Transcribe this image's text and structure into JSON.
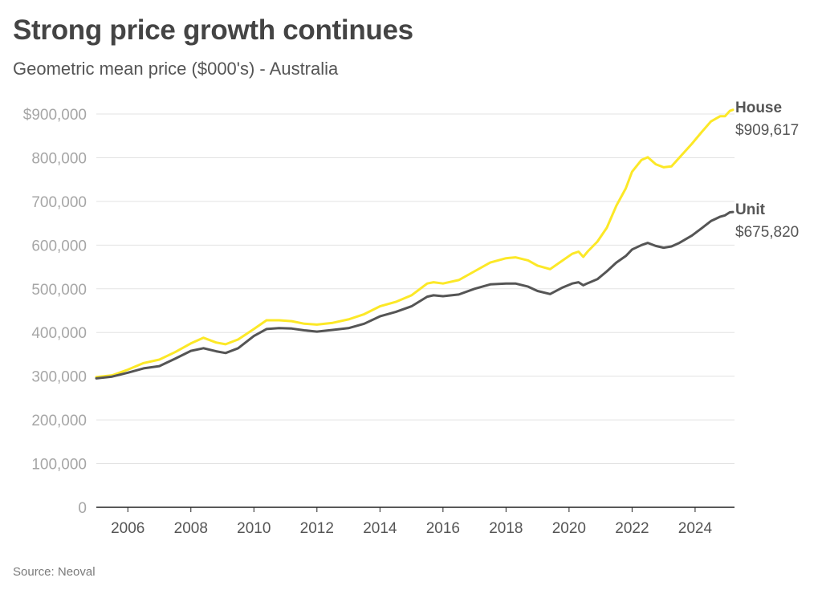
{
  "title": "Strong price growth continues",
  "subtitle": "Geometric mean price ($000's) - Australia",
  "source": "Source: Neoval",
  "chart_data": {
    "type": "line",
    "title": "Strong price growth continues",
    "subtitle": "Geometric mean price ($000's) - Australia",
    "ylim": [
      0,
      900000
    ],
    "yticks": [
      0,
      100000,
      200000,
      300000,
      400000,
      500000,
      600000,
      700000,
      800000,
      900000
    ],
    "ytick_labels": [
      "0",
      "100,000",
      "200,000",
      "300,000",
      "400,000",
      "500,000",
      "600,000",
      "700,000",
      "800,000",
      "$900,000"
    ],
    "xlim": [
      2005.0,
      2025.25
    ],
    "xticks": [
      2006,
      2008,
      2010,
      2012,
      2014,
      2016,
      2018,
      2020,
      2022,
      2024
    ],
    "xtick_labels": [
      "2006",
      "2008",
      "2010",
      "2012",
      "2014",
      "2016",
      "2018",
      "2020",
      "2022",
      "2024"
    ],
    "grid": "horizontal",
    "legend": "end labels",
    "series": [
      {
        "name": "House",
        "end_label": "$909,617",
        "color": "#fce827",
        "points": [
          [
            2005.0,
            298000
          ],
          [
            2005.5,
            302000
          ],
          [
            2006.0,
            315000
          ],
          [
            2006.5,
            330000
          ],
          [
            2007.0,
            338000
          ],
          [
            2007.5,
            355000
          ],
          [
            2008.0,
            375000
          ],
          [
            2008.4,
            388000
          ],
          [
            2008.8,
            377000
          ],
          [
            2009.1,
            373000
          ],
          [
            2009.5,
            384000
          ],
          [
            2010.0,
            408000
          ],
          [
            2010.4,
            428000
          ],
          [
            2010.8,
            428000
          ],
          [
            2011.2,
            426000
          ],
          [
            2011.6,
            420000
          ],
          [
            2012.0,
            418000
          ],
          [
            2012.5,
            422000
          ],
          [
            2013.0,
            430000
          ],
          [
            2013.5,
            442000
          ],
          [
            2014.0,
            460000
          ],
          [
            2014.5,
            470000
          ],
          [
            2015.0,
            485000
          ],
          [
            2015.5,
            512000
          ],
          [
            2015.7,
            515000
          ],
          [
            2016.0,
            512000
          ],
          [
            2016.5,
            520000
          ],
          [
            2017.0,
            540000
          ],
          [
            2017.5,
            560000
          ],
          [
            2018.0,
            570000
          ],
          [
            2018.3,
            572000
          ],
          [
            2018.7,
            565000
          ],
          [
            2019.0,
            553000
          ],
          [
            2019.4,
            545000
          ],
          [
            2019.8,
            565000
          ],
          [
            2020.1,
            580000
          ],
          [
            2020.3,
            585000
          ],
          [
            2020.45,
            573000
          ],
          [
            2020.6,
            586000
          ],
          [
            2020.9,
            608000
          ],
          [
            2021.2,
            640000
          ],
          [
            2021.5,
            690000
          ],
          [
            2021.8,
            730000
          ],
          [
            2022.0,
            768000
          ],
          [
            2022.3,
            795000
          ],
          [
            2022.5,
            801000
          ],
          [
            2022.75,
            785000
          ],
          [
            2023.0,
            778000
          ],
          [
            2023.25,
            780000
          ],
          [
            2023.5,
            800000
          ],
          [
            2023.9,
            832000
          ],
          [
            2024.2,
            858000
          ],
          [
            2024.5,
            883000
          ],
          [
            2024.8,
            895000
          ],
          [
            2024.95,
            895000
          ],
          [
            2025.1,
            907000
          ],
          [
            2025.2,
            909617
          ]
        ]
      },
      {
        "name": "Unit",
        "end_label": "$675,820",
        "color": "#555555",
        "points": [
          [
            2005.0,
            295000
          ],
          [
            2005.5,
            299000
          ],
          [
            2006.0,
            308000
          ],
          [
            2006.5,
            318000
          ],
          [
            2007.0,
            323000
          ],
          [
            2007.5,
            340000
          ],
          [
            2008.0,
            358000
          ],
          [
            2008.4,
            364000
          ],
          [
            2008.8,
            357000
          ],
          [
            2009.1,
            353000
          ],
          [
            2009.5,
            364000
          ],
          [
            2010.0,
            392000
          ],
          [
            2010.4,
            408000
          ],
          [
            2010.8,
            410000
          ],
          [
            2011.2,
            409000
          ],
          [
            2011.6,
            405000
          ],
          [
            2012.0,
            402000
          ],
          [
            2012.5,
            406000
          ],
          [
            2013.0,
            410000
          ],
          [
            2013.5,
            420000
          ],
          [
            2014.0,
            437000
          ],
          [
            2014.5,
            447000
          ],
          [
            2015.0,
            460000
          ],
          [
            2015.5,
            482000
          ],
          [
            2015.7,
            485000
          ],
          [
            2016.0,
            483000
          ],
          [
            2016.5,
            487000
          ],
          [
            2017.0,
            500000
          ],
          [
            2017.5,
            510000
          ],
          [
            2018.0,
            512000
          ],
          [
            2018.3,
            512000
          ],
          [
            2018.7,
            505000
          ],
          [
            2019.0,
            495000
          ],
          [
            2019.4,
            488000
          ],
          [
            2019.8,
            503000
          ],
          [
            2020.1,
            512000
          ],
          [
            2020.3,
            515000
          ],
          [
            2020.45,
            508000
          ],
          [
            2020.6,
            513000
          ],
          [
            2020.9,
            522000
          ],
          [
            2021.2,
            540000
          ],
          [
            2021.5,
            560000
          ],
          [
            2021.8,
            575000
          ],
          [
            2022.0,
            590000
          ],
          [
            2022.3,
            600000
          ],
          [
            2022.5,
            605000
          ],
          [
            2022.75,
            598000
          ],
          [
            2023.0,
            594000
          ],
          [
            2023.25,
            597000
          ],
          [
            2023.5,
            605000
          ],
          [
            2023.9,
            622000
          ],
          [
            2024.2,
            638000
          ],
          [
            2024.5,
            655000
          ],
          [
            2024.8,
            665000
          ],
          [
            2024.95,
            668000
          ],
          [
            2025.1,
            675000
          ],
          [
            2025.2,
            675820
          ]
        ]
      }
    ]
  }
}
